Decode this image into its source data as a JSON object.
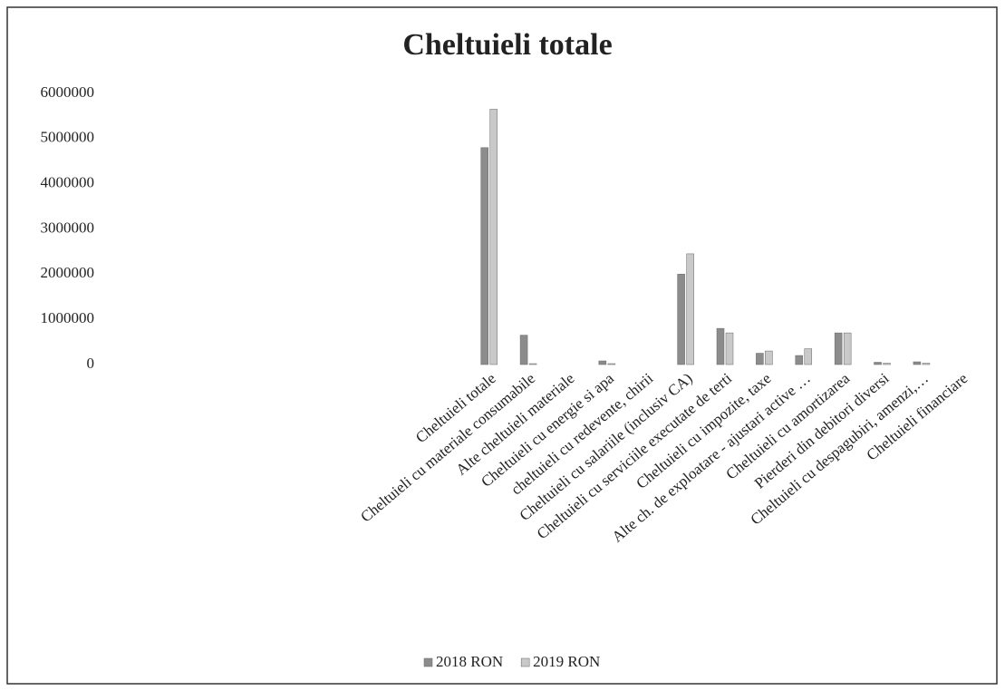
{
  "chart_data": {
    "type": "bar",
    "title": "Cheltuieli totale",
    "categories": [
      "Cheltuieli totale",
      "Cheltuieli cu materiale consumabile",
      "Alte cheltuieli materiale",
      "Cheltuieli cu energie si apa",
      "cheltuieli cu redevente, chirii",
      "Cheltuieli cu salariile (inclusiv CA)",
      "Cheltuieli cu serviciile executate de terti",
      "Cheltuieli cu impozite, taxe",
      "Alte ch. de exploatare - ajustari active …",
      "Cheltuieli cu amortizarea",
      "Pierderi din debitori diversi",
      "Cheltuieli cu despagubiri, amenzi,…",
      "Cheltuieli financiare"
    ],
    "series": [
      {
        "name": "2018 RON",
        "color": "#8c8c8c",
        "values": [
          4800000,
          650000,
          0,
          80000,
          0,
          2000000,
          800000,
          250000,
          200000,
          700000,
          50000,
          60000,
          0
        ]
      },
      {
        "name": "2019 RON",
        "color": "#c9c9c9",
        "values": [
          5650000,
          20000,
          0,
          20000,
          0,
          2450000,
          700000,
          300000,
          350000,
          700000,
          30000,
          30000,
          0
        ]
      }
    ],
    "ylim": [
      0,
      6000000
    ],
    "yticks": [
      0,
      1000000,
      2000000,
      3000000,
      4000000,
      5000000,
      6000000
    ],
    "grid": false,
    "legend": "bottom"
  }
}
